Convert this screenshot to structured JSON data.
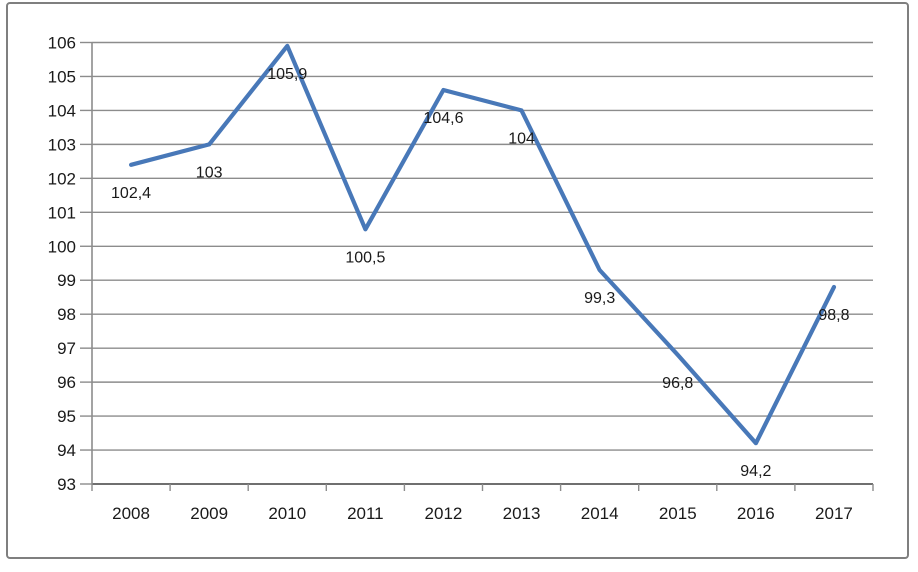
{
  "chart_data": {
    "type": "line",
    "title": "",
    "xlabel": "",
    "ylabel": "",
    "legend": "none",
    "grid": "horizontal",
    "categories": [
      "2008",
      "2009",
      "2010",
      "2011",
      "2012",
      "2013",
      "2014",
      "2015",
      "2016",
      "2017"
    ],
    "series": [
      {
        "name": "",
        "values": [
          102.4,
          103,
          105.9,
          100.5,
          104.6,
          104,
          99.3,
          96.8,
          94.2,
          98.8
        ],
        "data_labels": [
          "102,4",
          "103",
          "105,9",
          "100,5",
          "104,6",
          "104",
          "99,3",
          "96,8",
          "94,2",
          "98,8"
        ]
      }
    ],
    "y_axis": {
      "min": 93,
      "max": 106,
      "step": 1,
      "tick_labels": [
        "93",
        "94",
        "95",
        "96",
        "97",
        "98",
        "99",
        "100",
        "101",
        "102",
        "103",
        "104",
        "105",
        "106"
      ]
    },
    "colors": {
      "line": "#4878b8",
      "gridline": "#8c8c8c",
      "axis": "#6f6f6f",
      "text": "#1a1a1a",
      "background": "#ffffff",
      "frame_border": "#7f7f7f"
    }
  }
}
